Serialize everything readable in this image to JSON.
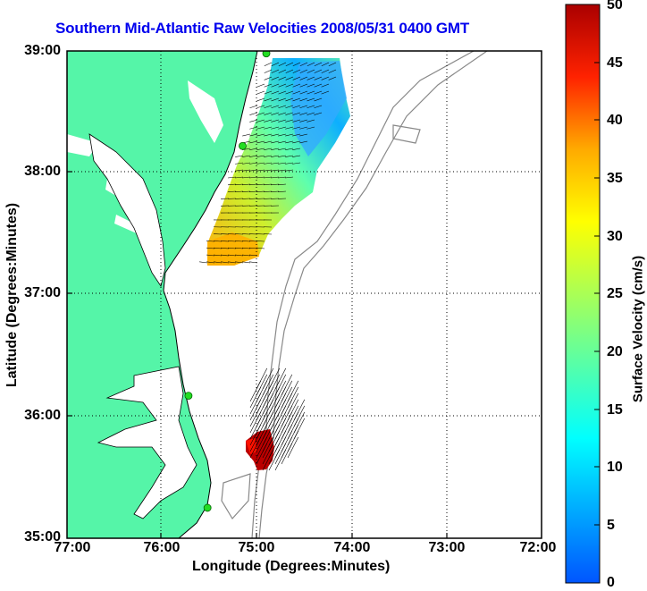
{
  "title": "Southern Mid-Atlantic Raw Velocities 2008/05/31 0400 GMT",
  "axes": {
    "xlabel": "Longitude (Degrees:Minutes)",
    "ylabel": "Latitude (Degrees:Minutes)",
    "x_ticks": [
      "77:00",
      "76:00",
      "75:00",
      "74:00",
      "73:00",
      "72:00"
    ],
    "y_ticks": [
      "39:00",
      "38:00",
      "37:00",
      "36:00",
      "35:00"
    ],
    "lon_range": [
      -77,
      -72
    ],
    "lat_range": [
      35,
      39
    ],
    "grid": "dotted"
  },
  "colorbar": {
    "label": "Surface Velocity (cm/s)",
    "range": [
      0,
      50
    ],
    "ticks": [
      "50",
      "45",
      "40",
      "35",
      "30",
      "25",
      "20",
      "15",
      "10",
      "5",
      "0"
    ],
    "colormap": "jet"
  },
  "colors": {
    "land": "#55f5a8",
    "ocean": "#ffffff",
    "title": "#0000ee",
    "station": "#22dd22"
  },
  "stations": [
    {
      "lon": -74.9,
      "lat": 38.98
    },
    {
      "lon": -75.15,
      "lat": 38.22
    },
    {
      "lon": -75.72,
      "lat": 36.17
    },
    {
      "lon": -75.52,
      "lat": 35.25
    }
  ]
}
